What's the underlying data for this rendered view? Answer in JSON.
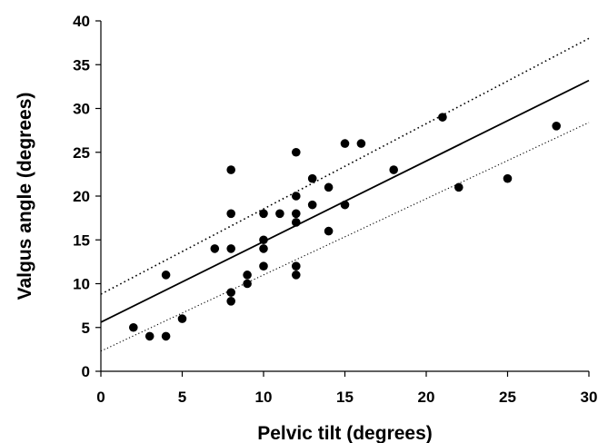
{
  "chart_data": {
    "type": "scatter",
    "xlabel": "Pelvic tilt (degrees)",
    "ylabel": "Valgus angle (degrees)",
    "xlim": [
      0,
      30
    ],
    "ylim": [
      0,
      40
    ],
    "xticks": [
      0,
      5,
      10,
      15,
      20,
      25,
      30
    ],
    "yticks": [
      0,
      5,
      10,
      15,
      20,
      25,
      30,
      35,
      40
    ],
    "grid": false,
    "legend": "none",
    "points": [
      {
        "x": 2,
        "y": 5
      },
      {
        "x": 3,
        "y": 4
      },
      {
        "x": 4,
        "y": 4
      },
      {
        "x": 4,
        "y": 11
      },
      {
        "x": 5,
        "y": 6
      },
      {
        "x": 7,
        "y": 14
      },
      {
        "x": 8,
        "y": 8
      },
      {
        "x": 8,
        "y": 9
      },
      {
        "x": 8,
        "y": 14
      },
      {
        "x": 8,
        "y": 18
      },
      {
        "x": 8,
        "y": 23
      },
      {
        "x": 9,
        "y": 10
      },
      {
        "x": 9,
        "y": 11
      },
      {
        "x": 10,
        "y": 12
      },
      {
        "x": 10,
        "y": 14
      },
      {
        "x": 10,
        "y": 15
      },
      {
        "x": 10,
        "y": 18
      },
      {
        "x": 11,
        "y": 18
      },
      {
        "x": 12,
        "y": 11
      },
      {
        "x": 12,
        "y": 12
      },
      {
        "x": 12,
        "y": 17
      },
      {
        "x": 12,
        "y": 18
      },
      {
        "x": 12,
        "y": 20
      },
      {
        "x": 12,
        "y": 25
      },
      {
        "x": 13,
        "y": 19
      },
      {
        "x": 13,
        "y": 22
      },
      {
        "x": 14,
        "y": 16
      },
      {
        "x": 14,
        "y": 21
      },
      {
        "x": 15,
        "y": 19
      },
      {
        "x": 15,
        "y": 26
      },
      {
        "x": 16,
        "y": 26
      },
      {
        "x": 18,
        "y": 23
      },
      {
        "x": 21,
        "y": 29
      },
      {
        "x": 22,
        "y": 21
      },
      {
        "x": 25,
        "y": 22
      },
      {
        "x": 28,
        "y": 28
      }
    ],
    "lines": [
      {
        "style": "solid",
        "x": [
          0,
          30
        ],
        "y": [
          5.6,
          33.2
        ]
      },
      {
        "style": "dotted-upper",
        "x": [
          0,
          30
        ],
        "y": [
          8.8,
          38
        ]
      },
      {
        "style": "dotted-lower",
        "x": [
          0,
          30
        ],
        "y": [
          2.3,
          28.4
        ]
      }
    ],
    "colors": {
      "points": "#000000",
      "lines": "#000000",
      "background": "#ffffff"
    }
  }
}
